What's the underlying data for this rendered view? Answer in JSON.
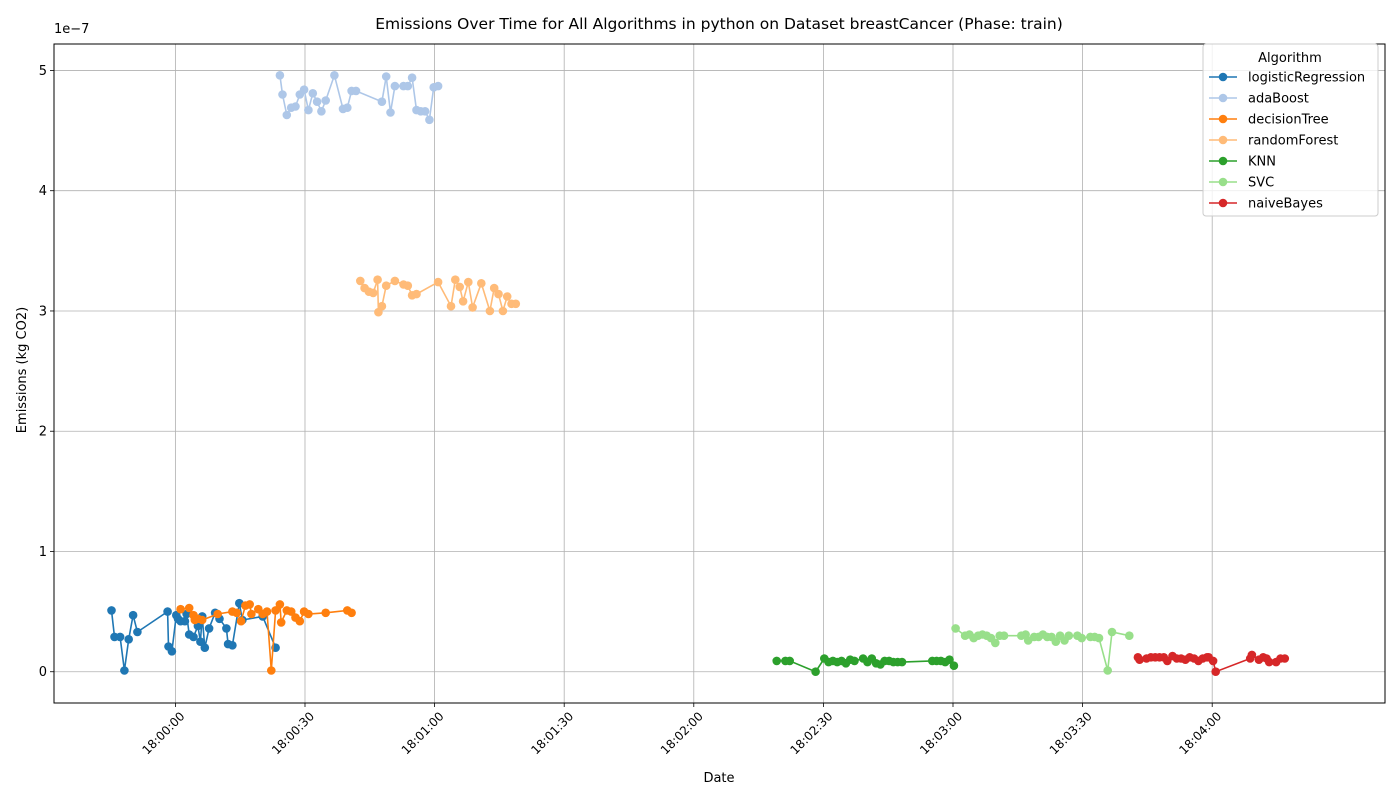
{
  "chart_data": {
    "type": "line",
    "title": "Emissions Over Time for All Algorithms in python on Dataset breastCancer (Phase: train)",
    "xlabel": "Date",
    "ylabel": "Emissions (kg CO2)",
    "y_offset_label": "1e−7",
    "x_tick_labels": [
      "18:00:00",
      "18:00:30",
      "18:01:00",
      "18:01:30",
      "18:02:00",
      "18:02:30",
      "18:03:00",
      "18:03:30",
      "18:04:00"
    ],
    "y_tick_labels": [
      "0",
      "1",
      "2",
      "3",
      "4",
      "5"
    ],
    "xlim_seconds": [
      -28.1,
      280.0
    ],
    "ylim": [
      -0.26,
      5.22
    ],
    "x_reference_time": "18:00:00",
    "grid": true,
    "legend": {
      "title": "Algorithm",
      "placement": "top-right"
    },
    "series": [
      {
        "name": "logisticRegression",
        "color": "#1f77b4",
        "x": [
          -14.8,
          -14.1,
          -12.8,
          -11.8,
          -10.8,
          -9.8,
          -8.8,
          -1.8,
          -1.6,
          -0.8,
          0.2,
          0.6,
          1.2,
          2.2,
          2.6,
          3.2,
          4.2,
          5.2,
          5.8,
          6.2,
          6.8,
          7.8,
          9.2,
          10.2,
          11.8,
          12.2,
          13.2,
          14.8,
          15.5,
          20.2,
          23.2
        ],
        "y": [
          0.51,
          0.29,
          0.29,
          0.01,
          0.27,
          0.47,
          0.33,
          0.5,
          0.21,
          0.17,
          0.47,
          0.44,
          0.42,
          0.42,
          0.48,
          0.31,
          0.29,
          0.38,
          0.25,
          0.46,
          0.2,
          0.36,
          0.49,
          0.44,
          0.36,
          0.23,
          0.22,
          0.57,
          0.43,
          0.46,
          0.2
        ]
      },
      {
        "name": "adaBoost",
        "color": "#aec7e8",
        "x": [
          24.2,
          24.8,
          25.8,
          26.8,
          27.8,
          28.8,
          29.8,
          30.8,
          31.8,
          32.8,
          33.8,
          34.8,
          36.8,
          38.8,
          39.8,
          40.8,
          41.8,
          47.8,
          48.8,
          49.8,
          50.8,
          52.8,
          53.8,
          54.8,
          55.8,
          56.8,
          57.8,
          58.8,
          59.8,
          60.8
        ],
        "y": [
          4.96,
          4.8,
          4.63,
          4.69,
          4.7,
          4.8,
          4.84,
          4.67,
          4.81,
          4.74,
          4.66,
          4.75,
          4.96,
          4.68,
          4.69,
          4.83,
          4.83,
          4.74,
          4.95,
          4.65,
          4.87,
          4.87,
          4.87,
          4.94,
          4.67,
          4.66,
          4.66,
          4.59,
          4.86,
          4.87
        ]
      },
      {
        "name": "decisionTree",
        "color": "#ff7f0e",
        "x": [
          1.2,
          3.2,
          4.2,
          4.5,
          5.2,
          6.2,
          9.8,
          13.2,
          14.2,
          15.2,
          16.2,
          17.2,
          17.6,
          19.2,
          20.2,
          21.2,
          22.2,
          23.2,
          24.2,
          24.5,
          25.8,
          26.8,
          27.8,
          28.8,
          29.8,
          30.8,
          34.8,
          39.8,
          40.8
        ],
        "y": [
          0.52,
          0.53,
          0.47,
          0.43,
          0.44,
          0.43,
          0.48,
          0.5,
          0.49,
          0.42,
          0.55,
          0.56,
          0.48,
          0.52,
          0.48,
          0.5,
          0.01,
          0.51,
          0.56,
          0.41,
          0.51,
          0.5,
          0.45,
          0.42,
          0.5,
          0.48,
          0.49,
          0.51,
          0.49
        ]
      },
      {
        "name": "randomForest",
        "color": "#ffbb78",
        "x": [
          42.8,
          43.8,
          44.8,
          45.8,
          46.8,
          47.0,
          47.8,
          48.8,
          50.8,
          52.8,
          53.8,
          54.8,
          55.8,
          60.8,
          63.8,
          64.8,
          65.8,
          66.6,
          67.8,
          68.8,
          70.8,
          72.8,
          73.8,
          74.8,
          75.8,
          76.8,
          77.8,
          78.8
        ],
        "y": [
          3.25,
          3.19,
          3.16,
          3.15,
          3.26,
          2.99,
          3.04,
          3.21,
          3.25,
          3.22,
          3.21,
          3.13,
          3.14,
          3.24,
          3.04,
          3.26,
          3.2,
          3.08,
          3.24,
          3.03,
          3.23,
          3.0,
          3.19,
          3.14,
          3.0,
          3.12,
          3.06,
          3.06
        ]
      },
      {
        "name": "KNN",
        "color": "#2ca02c",
        "x": [
          139.2,
          141.2,
          142.2,
          148.2,
          150.2,
          151.2,
          152.2,
          153.2,
          154.2,
          155.2,
          156.2,
          157.2,
          159.2,
          160.2,
          161.2,
          162.2,
          163.2,
          164.2,
          165.2,
          166.2,
          167.2,
          168.2,
          175.2,
          176.2,
          177.2,
          178.2,
          179.2,
          180.2
        ],
        "y": [
          0.09,
          0.09,
          0.09,
          0.0,
          0.11,
          0.08,
          0.09,
          0.08,
          0.09,
          0.07,
          0.1,
          0.09,
          0.11,
          0.08,
          0.11,
          0.07,
          0.06,
          0.09,
          0.09,
          0.08,
          0.08,
          0.08,
          0.09,
          0.09,
          0.09,
          0.08,
          0.1,
          0.05
        ]
      },
      {
        "name": "SVC",
        "color": "#98df8a",
        "x": [
          180.6,
          182.8,
          183.8,
          184.8,
          185.8,
          186.8,
          187.8,
          188.8,
          189.8,
          190.8,
          191.8,
          195.8,
          196.8,
          197.4,
          198.8,
          199.8,
          200.8,
          201.8,
          202.8,
          203.8,
          204.8,
          205.8,
          206.8,
          208.8,
          209.8,
          211.8,
          212.8,
          213.8,
          215.8,
          216.8,
          220.8
        ],
        "y": [
          0.36,
          0.3,
          0.31,
          0.28,
          0.3,
          0.31,
          0.3,
          0.28,
          0.24,
          0.3,
          0.3,
          0.3,
          0.31,
          0.26,
          0.29,
          0.29,
          0.31,
          0.29,
          0.29,
          0.25,
          0.3,
          0.26,
          0.3,
          0.3,
          0.28,
          0.29,
          0.29,
          0.28,
          0.01,
          0.33,
          0.3
        ]
      },
      {
        "name": "naiveBayes",
        "color": "#d62728",
        "x": [
          222.8,
          223.2,
          224.8,
          225.8,
          226.8,
          227.8,
          228.8,
          229.6,
          230.8,
          231.8,
          232.8,
          233.8,
          234.8,
          235.8,
          236.8,
          237.8,
          238.8,
          239.2,
          240.2,
          240.8,
          248.8,
          249.2,
          250.8,
          251.8,
          252.6,
          253.2,
          254.8,
          255.8,
          256.8
        ],
        "y": [
          0.12,
          0.1,
          0.11,
          0.12,
          0.12,
          0.12,
          0.12,
          0.09,
          0.13,
          0.11,
          0.11,
          0.1,
          0.12,
          0.11,
          0.09,
          0.11,
          0.12,
          0.12,
          0.09,
          0.0,
          0.11,
          0.14,
          0.1,
          0.12,
          0.11,
          0.08,
          0.08,
          0.11,
          0.11
        ]
      }
    ]
  }
}
